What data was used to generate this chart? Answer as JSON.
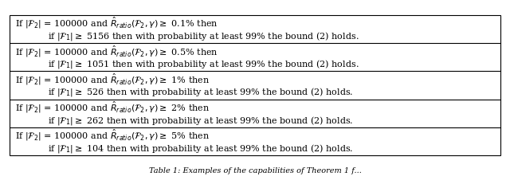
{
  "rows": [
    {
      "line1_parts": [
        "If ",
        "|\\mathcal{F}_2|",
        " = 100000 and ",
        "\\hat{R}_{ratio}",
        "(\\mathcal{F}_2, \\gamma) \\geq 0.1\\%",
        " then"
      ],
      "line2_parts": [
        "if ",
        "|\\mathcal{F}_1|",
        " ≥ 5156 then with probability at least 99% the bound (2) holds."
      ],
      "pct": "0.1%",
      "f1val": "5156"
    },
    {
      "line1_parts": [
        "If ",
        "|\\mathcal{F}_2|",
        " = 100000 and ",
        "\\hat{R}_{ratio}",
        "(\\mathcal{F}_2, \\gamma) \\geq 0.5\\%",
        " then"
      ],
      "line2_parts": [
        "if ",
        "|\\mathcal{F}_1|",
        " ≥ 1051 then with probability at least 99% the bound (2) holds."
      ],
      "pct": "0.5%",
      "f1val": "1051"
    },
    {
      "line1_parts": [
        "If ",
        "|\\mathcal{F}_2|",
        " = 100000 and ",
        "\\hat{R}_{ratio}",
        "(\\mathcal{F}_2, \\gamma) \\geq 1\\%",
        " then"
      ],
      "line2_parts": [
        "if ",
        "|\\mathcal{F}_1|",
        " ≥ 526 then with probability at least 99% the bound (2) holds."
      ],
      "pct": "1%",
      "f1val": "526"
    },
    {
      "line1_parts": [
        "If ",
        "|\\mathcal{F}_2|",
        " = 100000 and ",
        "\\hat{R}_{ratio}",
        "(\\mathcal{F}_2, \\gamma) \\geq 2\\%",
        " then"
      ],
      "line2_parts": [
        "if ",
        "|\\mathcal{F}_1|",
        " ≥ 262 then with probability at least 99% the bound (2) holds."
      ],
      "pct": "2%",
      "f1val": "262"
    },
    {
      "line1_parts": [
        "If ",
        "|\\mathcal{F}_2|",
        " = 100000 and ",
        "\\hat{R}_{ratio}",
        "(\\mathcal{F}_2, \\gamma) \\geq 5\\%",
        " then"
      ],
      "line2_parts": [
        "if ",
        "|\\mathcal{F}_1|",
        " ≥ 104 then with probability at least 99% the bound (2) holds."
      ],
      "pct": "5%",
      "f1val": "104"
    }
  ],
  "figsize": [
    6.4,
    2.32
  ],
  "dpi": 100,
  "bg_color": "#ffffff",
  "border_color": "#000000",
  "text_color": "#000000",
  "font_size": 8.0,
  "caption": "Table 1: Examples of the capabilities of Theorem 1 f..."
}
